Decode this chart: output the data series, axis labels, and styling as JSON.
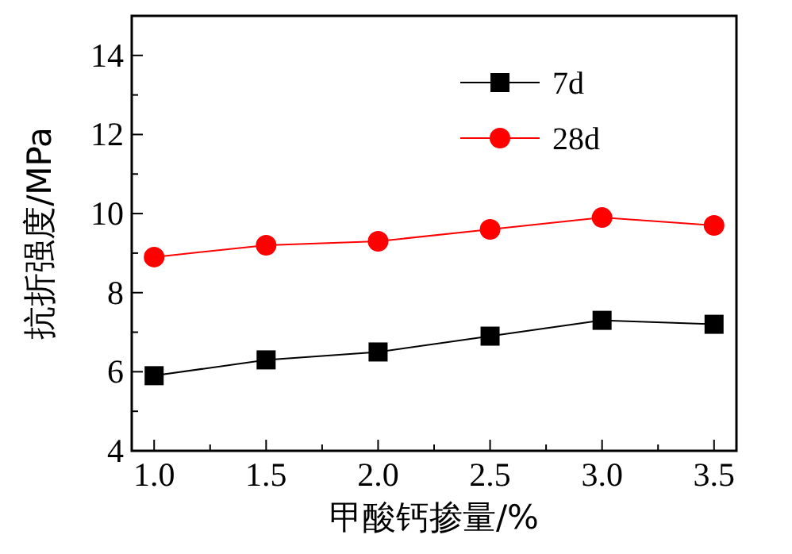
{
  "chart_data": {
    "type": "line",
    "xlabel": "甲酸钙掺量/%",
    "ylabel": "抗折强度/MPa",
    "x": [
      1.0,
      1.5,
      2.0,
      2.5,
      3.0,
      3.5
    ],
    "series": [
      {
        "name": "7d",
        "color": "#000000",
        "marker": "square",
        "values": [
          5.9,
          6.3,
          6.5,
          6.9,
          7.3,
          7.2
        ]
      },
      {
        "name": "28d",
        "color": "#ff0000",
        "marker": "circle",
        "values": [
          8.9,
          9.2,
          9.3,
          9.6,
          9.9,
          9.7
        ]
      }
    ],
    "xlim": [
      0.9,
      3.6
    ],
    "xticks": [
      {
        "value": 1.0,
        "label": "1.0"
      },
      {
        "value": 1.25,
        "label": null
      },
      {
        "value": 1.5,
        "label": "1.5"
      },
      {
        "value": 1.75,
        "label": null
      },
      {
        "value": 2.0,
        "label": "2.0"
      },
      {
        "value": 2.25,
        "label": null
      },
      {
        "value": 2.5,
        "label": "2.5"
      },
      {
        "value": 2.75,
        "label": null
      },
      {
        "value": 3.0,
        "label": "3.0"
      },
      {
        "value": 3.25,
        "label": null
      },
      {
        "value": 3.5,
        "label": "3.5"
      }
    ],
    "ylim": [
      4,
      15
    ],
    "yticks": [
      4,
      {
        "value": 5,
        "label": null
      },
      6,
      {
        "value": 7,
        "label": null
      },
      8,
      {
        "value": 9,
        "label": null
      },
      10,
      {
        "value": 11,
        "label": null
      },
      12,
      {
        "value": 13,
        "label": null
      },
      14
    ],
    "legend": "top right",
    "grid": false,
    "line_style": "solid"
  }
}
